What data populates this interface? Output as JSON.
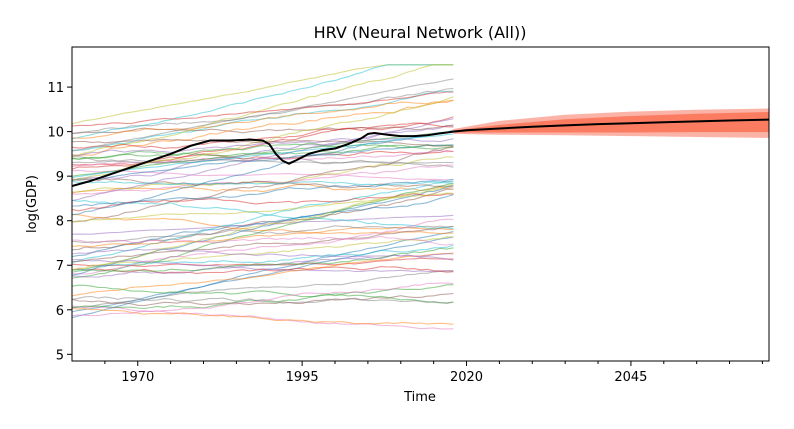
{
  "chart_data": {
    "type": "line",
    "title": "HRV (Neural Network (All))",
    "xlabel": "Time",
    "ylabel": "log(GDP)",
    "xlim": [
      1960,
      2066
    ],
    "ylim": [
      4.85,
      11.9
    ],
    "x_ticks": [
      1970,
      1995,
      2020,
      2045
    ],
    "y_ticks": [
      5,
      6,
      7,
      8,
      9,
      10,
      11
    ],
    "grid": false,
    "legend": "none",
    "history_x": [
      1960,
      2018
    ],
    "num_country_series": 70,
    "country_series_alpha": 0.5,
    "series": [
      {
        "kind": "historical-mean",
        "color": "#000000",
        "x": [
          1960,
          1963,
          1966,
          1969,
          1972,
          1975,
          1978,
          1981,
          1984,
          1987,
          1989,
          1990,
          1991,
          1992,
          1993,
          1994,
          1996,
          1998,
          2000,
          2002,
          2004,
          2005,
          2006,
          2008,
          2010,
          2012,
          2014,
          2016,
          2018
        ],
        "values": [
          8.78,
          8.9,
          9.05,
          9.2,
          9.35,
          9.5,
          9.68,
          9.8,
          9.8,
          9.82,
          9.8,
          9.72,
          9.5,
          9.35,
          9.28,
          9.35,
          9.5,
          9.58,
          9.62,
          9.72,
          9.85,
          9.95,
          9.97,
          9.93,
          9.9,
          9.9,
          9.92,
          9.96,
          10.0
        ]
      },
      {
        "kind": "forecast-mean",
        "color": "#000000",
        "x": [
          2018,
          2020,
          2025,
          2030,
          2035,
          2040,
          2045,
          2050,
          2055,
          2060,
          2066
        ],
        "values": [
          10.0,
          10.03,
          10.07,
          10.11,
          10.14,
          10.17,
          10.19,
          10.21,
          10.23,
          10.25,
          10.27
        ]
      }
    ],
    "forecast_bands": [
      {
        "name": "outer",
        "color": "#fa9a8a",
        "x": [
          2018,
          2025,
          2035,
          2045,
          2055,
          2066
        ],
        "lower": [
          9.95,
          9.93,
          9.92,
          9.9,
          9.88,
          9.86
        ],
        "upper": [
          10.06,
          10.24,
          10.38,
          10.45,
          10.49,
          10.52
        ]
      },
      {
        "name": "inner",
        "color": "#fb6a4a",
        "x": [
          2018,
          2025,
          2035,
          2045,
          2055,
          2066
        ],
        "lower": [
          9.98,
          9.98,
          9.98,
          9.98,
          9.99,
          9.99
        ],
        "upper": [
          10.03,
          10.15,
          10.28,
          10.35,
          10.4,
          10.44
        ]
      }
    ],
    "colors": [
      "#1f77b4",
      "#ff7f0e",
      "#2ca02c",
      "#d62728",
      "#9467bd",
      "#8c564b",
      "#e377c2",
      "#7f7f7f",
      "#bcbd22",
      "#17becf"
    ]
  }
}
